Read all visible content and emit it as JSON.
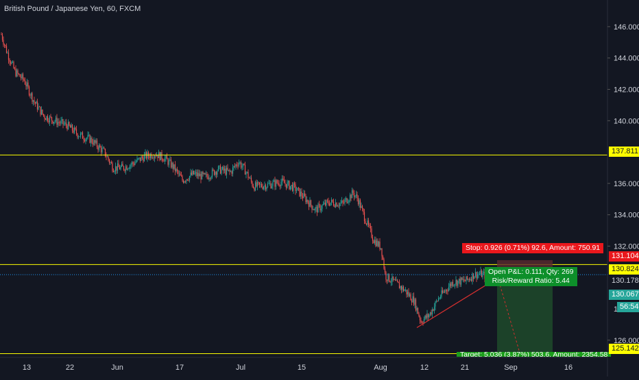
{
  "title": "British Pound / Japanese Yen, 60, FXCM",
  "colors": {
    "background": "#131722",
    "bull": "#26a69a",
    "bear": "#ef5350",
    "horizontal_line": "#ffff00",
    "current_price_line": "#2196f3",
    "stop_label": "#e9171c",
    "target_label": "#1b9e1b",
    "target_zone": "#1e4a2a",
    "open_pl": "#0d8f2a",
    "trend_line": "#d32f2f",
    "axis_text": "#d1d4dc"
  },
  "price_axis": {
    "ticks": [
      "146.000",
      "144.000",
      "142.000",
      "140.000",
      "136.000",
      "134.000",
      "132.000",
      "126.000"
    ],
    "partial_tick": "12"
  },
  "time_axis": {
    "labels": [
      "13",
      "22",
      "Jun",
      "17",
      "Jul",
      "15",
      "Aug",
      "12",
      "21",
      "Sep",
      "16"
    ]
  },
  "price_tags": {
    "level_1": "137.811",
    "stop": "131.104",
    "level_2": "130.824",
    "current": "130.178",
    "last": "130.067",
    "countdown": "56:54",
    "target": "125.142"
  },
  "position": {
    "stop_text": "Stop: 0.926 (0.71%) 92.6, Amount: 750.91",
    "open_pl_text": "Open P&L: 0.111, Qty: 269",
    "rr_text": "Risk/Reward Ratio: 5.44",
    "target_text": "Target: 5.036 (3.87%) 503.6, Amount: 2354.58"
  },
  "chart_data": {
    "type": "candlestick",
    "instrument": "British Pound / Japanese Yen",
    "interval": "60",
    "source": "FXCM",
    "ylim": [
      124.9,
      147.7
    ],
    "x_ticks": [
      "13",
      "22",
      "Jun",
      "17",
      "Jul",
      "15",
      "Aug",
      "12",
      "21",
      "Sep",
      "16"
    ],
    "price_path": {
      "dates": [
        "13",
        "22",
        "Jun",
        "17",
        "Jul",
        "15",
        "Aug",
        "12",
        "21"
      ],
      "approx_close": [
        143.0,
        140.0,
        137.0,
        137.0,
        137.3,
        136.0,
        131.5,
        127.0,
        130.5
      ]
    },
    "horizontal_levels": [
      137.811,
      130.824,
      125.142
    ],
    "position": {
      "type": "long",
      "entry": 130.178,
      "stop": 131.104,
      "target": 125.142,
      "qty": 269,
      "risk_reward": 5.44
    },
    "current_price": 130.178,
    "last_price": 130.067
  }
}
